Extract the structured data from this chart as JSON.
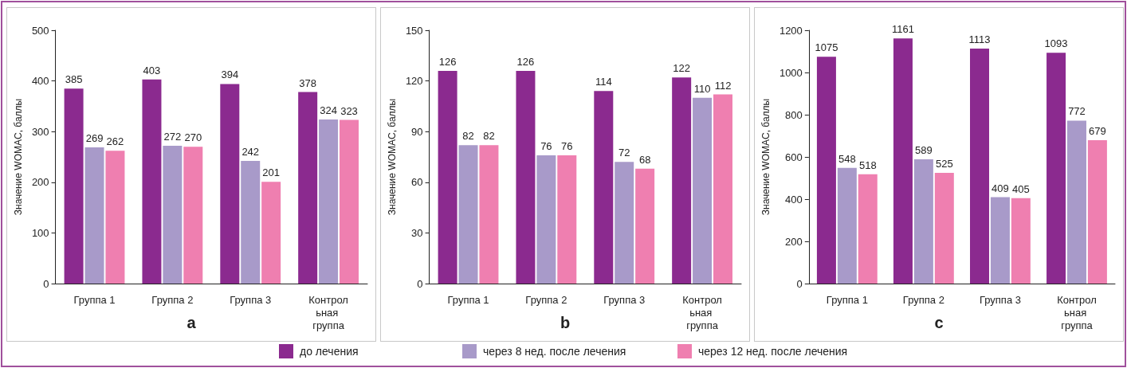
{
  "chart_data": [
    {
      "type": "bar",
      "title": "a",
      "ylabel": "Значение WOMAC, баллы",
      "categories": [
        "Группа 1",
        "Группа 2",
        "Группа 3",
        "Контрольная группа"
      ],
      "ylim": [
        0,
        500
      ],
      "yticks": [
        0,
        100,
        200,
        300,
        400,
        500
      ],
      "data_labels": true,
      "grid": false,
      "series": [
        {
          "color": "#8b2a8f",
          "values": [
            385,
            403,
            394,
            378
          ]
        },
        {
          "color": "#a89ac9",
          "values": [
            269,
            272,
            242,
            324
          ]
        },
        {
          "color": "#ef7fb0",
          "values": [
            262,
            270,
            201,
            323
          ]
        }
      ]
    },
    {
      "type": "bar",
      "title": "b",
      "ylabel": "Значение WOMAC, баллы",
      "categories": [
        "Группа 1",
        "Группа 2",
        "Группа 3",
        "Контрольная группа"
      ],
      "ylim": [
        0,
        150
      ],
      "yticks": [
        0,
        30,
        60,
        90,
        120,
        150
      ],
      "data_labels": true,
      "grid": false,
      "legend": "bottom",
      "series": [
        {
          "name": "до лечения",
          "color": "#8b2a8f",
          "values": [
            126,
            126,
            114,
            122
          ]
        },
        {
          "name": "через 8 нед. после лечения",
          "color": "#a89ac9",
          "values": [
            82,
            76,
            72,
            110
          ]
        },
        {
          "name": "через 12 нед. после лечения",
          "color": "#ef7fb0",
          "values": [
            82,
            76,
            68,
            112
          ]
        }
      ]
    },
    {
      "type": "bar",
      "title": "c",
      "ylabel": "Значение WOMAC, баллы",
      "categories": [
        "Группа 1",
        "Группа 2",
        "Группа 3",
        "Контрольная группа"
      ],
      "ylim": [
        0,
        1200
      ],
      "yticks": [
        0,
        200,
        400,
        600,
        800,
        1000,
        1200
      ],
      "data_labels": true,
      "grid": false,
      "series": [
        {
          "color": "#8b2a8f",
          "values": [
            1075,
            1161,
            1113,
            1093
          ]
        },
        {
          "color": "#a89ac9",
          "values": [
            548,
            589,
            409,
            772
          ]
        },
        {
          "color": "#ef7fb0",
          "values": [
            518,
            525,
            405,
            679
          ]
        }
      ]
    }
  ]
}
